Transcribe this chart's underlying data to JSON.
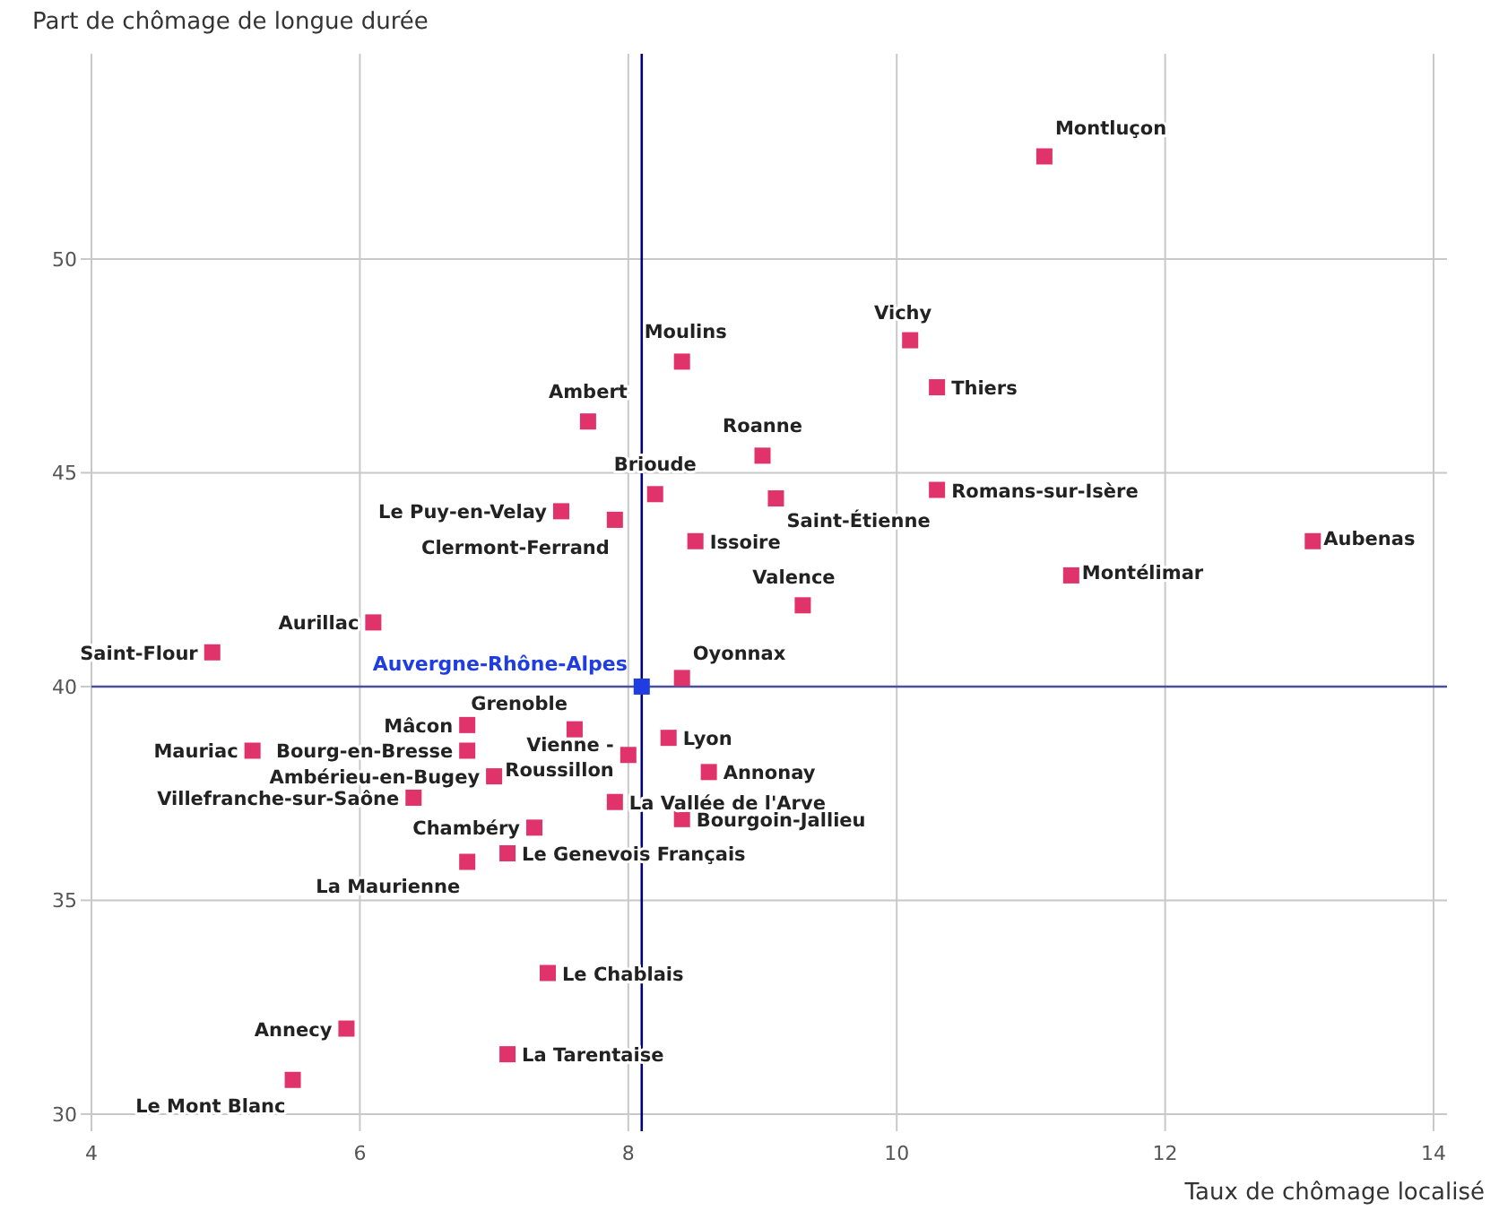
{
  "chart_data": {
    "type": "scatter",
    "xlabel": "Taux de chômage localisé",
    "ylabel": "Part de chômage de longue durée",
    "xlim": [
      4,
      14.1
    ],
    "ylim": [
      29.6,
      54.8
    ],
    "xticks": [
      4,
      6,
      8,
      10,
      12,
      14
    ],
    "yticks": [
      30,
      35,
      40,
      45,
      50
    ],
    "grid": true,
    "marker": "square",
    "series": [
      {
        "color": "#e0336b",
        "x": [
          11.1,
          10.1,
          10.3,
          8.4,
          7.7,
          9.0,
          8.2,
          9.1,
          10.3,
          7.5,
          7.9,
          8.5,
          13.1,
          11.3,
          9.3,
          6.1,
          4.9,
          8.4,
          7.6,
          6.8,
          5.2,
          6.8,
          8.0,
          8.3,
          8.6,
          7.0,
          6.4,
          7.9,
          8.4,
          7.3,
          7.1,
          6.8,
          7.4,
          5.9,
          7.1,
          5.5
        ],
        "values": [
          52.4,
          48.1,
          47.0,
          47.6,
          46.2,
          45.4,
          44.5,
          44.4,
          44.6,
          44.1,
          43.9,
          43.4,
          43.4,
          42.6,
          41.9,
          41.5,
          40.8,
          40.2,
          39.0,
          39.1,
          38.5,
          38.5,
          38.4,
          38.8,
          38.0,
          37.9,
          37.4,
          37.3,
          36.9,
          36.7,
          36.1,
          35.9,
          33.3,
          32.0,
          31.4,
          30.8
        ]
      },
      {
        "name": "Auvergne-Rhône-Alpes",
        "color": "#1f3de0",
        "x": [
          8.1
        ],
        "values": [
          40.0
        ]
      }
    ],
    "ref_lines": [
      {
        "axis": "x",
        "value": 8.1,
        "color": "#000080"
      },
      {
        "axis": "y",
        "value": 40,
        "color": "#4b4f9e"
      }
    ],
    "annotations": [
      {
        "text": "Montluçon",
        "x": 11.1,
        "y": 52.4
      },
      {
        "text": "Vichy",
        "x": 10.1,
        "y": 48.1
      },
      {
        "text": "Thiers",
        "x": 10.3,
        "y": 47.0
      },
      {
        "text": "Moulins",
        "x": 8.4,
        "y": 47.6
      },
      {
        "text": "Ambert",
        "x": 7.7,
        "y": 46.2
      },
      {
        "text": "Roanne",
        "x": 9.0,
        "y": 45.4
      },
      {
        "text": "Brioude",
        "x": 8.2,
        "y": 44.5
      },
      {
        "text": "Saint-Étienne",
        "x": 9.1,
        "y": 44.4
      },
      {
        "text": "Romans-sur-Isère",
        "x": 10.3,
        "y": 44.6
      },
      {
        "text": "Le Puy-en-Velay",
        "x": 7.5,
        "y": 44.1
      },
      {
        "text": "Clermont-Ferrand",
        "x": 7.9,
        "y": 43.9
      },
      {
        "text": "Issoire",
        "x": 8.5,
        "y": 43.4
      },
      {
        "text": "Aubenas",
        "x": 13.1,
        "y": 43.4
      },
      {
        "text": "Montélimar",
        "x": 11.3,
        "y": 42.6
      },
      {
        "text": "Valence",
        "x": 9.3,
        "y": 41.9
      },
      {
        "text": "Aurillac",
        "x": 6.1,
        "y": 41.5
      },
      {
        "text": "Saint-Flour",
        "x": 4.9,
        "y": 40.8
      },
      {
        "text": "Oyonnax",
        "x": 8.4,
        "y": 40.2
      },
      {
        "text": "Grenoble",
        "x": 7.6,
        "y": 39.0
      },
      {
        "text": "Mâcon",
        "x": 6.8,
        "y": 39.1
      },
      {
        "text": "Mauriac",
        "x": 5.2,
        "y": 38.5
      },
      {
        "text": "Bourg-en-Bresse",
        "x": 6.8,
        "y": 38.5
      },
      {
        "text": "Vienne - Roussillon",
        "x": 8.0,
        "y": 38.4
      },
      {
        "text": "Lyon",
        "x": 8.3,
        "y": 38.8
      },
      {
        "text": "Annonay",
        "x": 8.6,
        "y": 38.0
      },
      {
        "text": "Ambérieu-en-Bugey",
        "x": 7.0,
        "y": 37.9
      },
      {
        "text": "Villefranche-sur-Saône",
        "x": 6.4,
        "y": 37.4
      },
      {
        "text": "La Vallée de l'Arve",
        "x": 7.9,
        "y": 37.3
      },
      {
        "text": "Bourgoin-Jallieu",
        "x": 8.4,
        "y": 36.9
      },
      {
        "text": "Chambéry",
        "x": 7.3,
        "y": 36.7
      },
      {
        "text": "Le Genevois Français",
        "x": 7.1,
        "y": 36.1
      },
      {
        "text": "La Maurienne",
        "x": 6.8,
        "y": 35.9
      },
      {
        "text": "Le Chablais",
        "x": 7.4,
        "y": 33.3
      },
      {
        "text": "Annecy",
        "x": 5.9,
        "y": 32.0
      },
      {
        "text": "La Tarentaise",
        "x": 7.1,
        "y": 31.4
      },
      {
        "text": "Le Mont Blanc",
        "x": 5.5,
        "y": 30.8
      }
    ]
  }
}
